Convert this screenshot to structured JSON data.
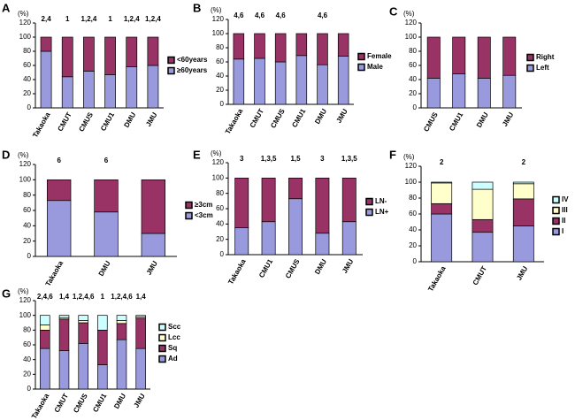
{
  "chart_data": [
    {
      "type": "bar",
      "stacked": true,
      "label": "A",
      "ylabel": "(%)",
      "categories": [
        "Takaoka",
        "CMUT",
        "CMUS",
        "CMU1",
        "DMU",
        "JMU"
      ],
      "series": [
        {
          "name": "≥60years",
          "color": "#9999dd",
          "values": [
            80,
            44,
            52,
            47,
            58,
            60
          ]
        },
        {
          "name": "<60years",
          "color": "#993366",
          "values": [
            20,
            56,
            48,
            53,
            42,
            40
          ]
        }
      ],
      "annotations": [
        "2,4",
        "1",
        "1,2,4",
        "1",
        "1,2,4",
        "1,2,4"
      ],
      "ylim": [
        0,
        120
      ],
      "yticks": [
        0,
        20,
        40,
        60,
        80,
        100,
        120
      ]
    },
    {
      "type": "bar",
      "stacked": true,
      "label": "B",
      "ylabel": "(%)",
      "categories": [
        "Takaoka",
        "CMUT",
        "CMUS",
        "CMU1",
        "DMU",
        "JMU"
      ],
      "series": [
        {
          "name": "Male",
          "color": "#9999dd",
          "values": [
            64,
            65,
            60,
            69,
            56,
            68
          ]
        },
        {
          "name": "Female",
          "color": "#993366",
          "values": [
            36,
            35,
            40,
            31,
            44,
            32
          ]
        }
      ],
      "annotations": [
        "4,6",
        "4,6",
        "4,6",
        null,
        "4,6",
        null
      ],
      "ylim": [
        0,
        120
      ],
      "yticks": [
        0,
        20,
        40,
        60,
        80,
        100,
        120
      ]
    },
    {
      "type": "bar",
      "stacked": true,
      "label": "C",
      "ylabel": "(%)",
      "categories": [
        "CMUS",
        "CMU1",
        "DMU",
        "JMU"
      ],
      "series": [
        {
          "name": "Left",
          "color": "#9999dd",
          "values": [
            42,
            48,
            42,
            46
          ]
        },
        {
          "name": "Right",
          "color": "#993366",
          "values": [
            58,
            52,
            58,
            54
          ]
        }
      ],
      "ylim": [
        0,
        120
      ],
      "yticks": [
        0,
        20,
        40,
        60,
        80,
        100,
        120
      ]
    },
    {
      "type": "bar",
      "stacked": true,
      "label": "D",
      "ylabel": "(%)",
      "categories": [
        "Takaoka",
        "DMU",
        "JMU"
      ],
      "series": [
        {
          "name": "<3cm",
          "color": "#9999dd",
          "values": [
            73,
            58,
            30
          ]
        },
        {
          "name": "≥3cm",
          "color": "#993366",
          "values": [
            27,
            42,
            70
          ]
        }
      ],
      "annotations": [
        "6",
        "6",
        null
      ],
      "ylim": [
        0,
        120
      ],
      "yticks": [
        0,
        20,
        40,
        60,
        80,
        100,
        120
      ]
    },
    {
      "type": "bar",
      "stacked": true,
      "label": "E",
      "ylabel": "(%)",
      "categories": [
        "Takaoka",
        "CMU1",
        "CMUS",
        "DMU",
        "JMU"
      ],
      "series": [
        {
          "name": "LN+",
          "color": "#9999dd",
          "values": [
            35,
            43,
            73,
            28,
            43
          ]
        },
        {
          "name": "LN-",
          "color": "#993366",
          "values": [
            65,
            57,
            27,
            72,
            57
          ]
        }
      ],
      "annotations": [
        "3",
        "1,3,5",
        "1,5",
        "3",
        "1,3,5"
      ],
      "ylim": [
        0,
        120
      ],
      "yticks": [
        0,
        20,
        40,
        60,
        80,
        100,
        120
      ]
    },
    {
      "type": "bar",
      "stacked": true,
      "label": "F",
      "ylabel": "(%)",
      "categories": [
        "Takaoka",
        "CMUT",
        "JMU"
      ],
      "series": [
        {
          "name": "I",
          "color": "#9999dd",
          "values": [
            60,
            37,
            45
          ]
        },
        {
          "name": "II",
          "color": "#993366",
          "values": [
            13,
            16,
            34
          ]
        },
        {
          "name": "III",
          "color": "#ffffcc",
          "values": [
            26,
            38,
            19
          ]
        },
        {
          "name": "IV",
          "color": "#ccffff",
          "values": [
            1,
            9,
            2
          ]
        }
      ],
      "annotations": [
        "2",
        null,
        "2"
      ],
      "ylim": [
        0,
        120
      ],
      "yticks": [
        0,
        20,
        40,
        60,
        80,
        100,
        120
      ]
    },
    {
      "type": "bar",
      "stacked": true,
      "label": "G",
      "ylabel": "(%)",
      "categories": [
        "Takaoka",
        "CMUT",
        "CMUS",
        "CMU1",
        "DMU",
        "JMU"
      ],
      "series": [
        {
          "name": "Ad",
          "color": "#9999dd",
          "values": [
            55,
            52,
            62,
            33,
            67,
            55
          ]
        },
        {
          "name": "Sq",
          "color": "#993366",
          "values": [
            25,
            43,
            28,
            47,
            22,
            41
          ]
        },
        {
          "name": "Lcc",
          "color": "#ffffcc",
          "values": [
            7,
            2,
            3,
            0,
            4,
            2
          ]
        },
        {
          "name": "Scc",
          "color": "#ccffff",
          "values": [
            13,
            3,
            7,
            20,
            7,
            2
          ]
        }
      ],
      "annotations": [
        "2,4,6",
        "1,4",
        "1,2,4,6",
        "1",
        "1,2,4,6",
        "1,4"
      ],
      "ylim": [
        0,
        120
      ],
      "yticks": [
        0,
        20,
        40,
        60,
        80,
        100,
        120
      ]
    }
  ]
}
